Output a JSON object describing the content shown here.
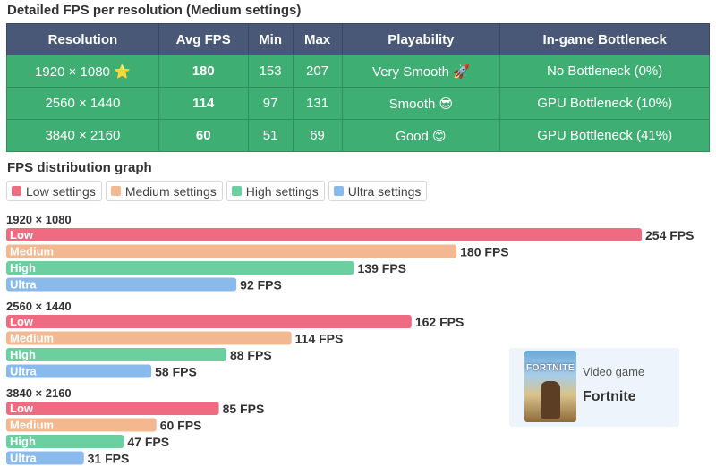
{
  "table_title": "Detailed FPS per resolution (Medium settings)",
  "table": {
    "headers": [
      "Resolution",
      "Avg FPS",
      "Min",
      "Max",
      "Playability",
      "In-game Bottleneck"
    ],
    "rows": [
      {
        "resolution": "1920 × 1080 ⭐",
        "avg": "180",
        "min": "153",
        "max": "207",
        "playability": "Very Smooth 🚀",
        "bottleneck": "No Bottleneck (0%)"
      },
      {
        "resolution": "2560 × 1440",
        "avg": "114",
        "min": "97",
        "max": "131",
        "playability": "Smooth 😎",
        "bottleneck": "GPU Bottleneck (10%)"
      },
      {
        "resolution": "3840 × 2160",
        "avg": "60",
        "min": "51",
        "max": "69",
        "playability": "Good 😊",
        "bottleneck": "GPU Bottleneck (41%)"
      }
    ]
  },
  "graph_title": "FPS distribution graph",
  "chart_data": {
    "type": "bar",
    "orientation": "horizontal",
    "legend": [
      "Low settings",
      "Medium settings",
      "High settings",
      "Ultra settings"
    ],
    "colors": {
      "Low": "#ef6b82",
      "Medium": "#f4b891",
      "High": "#6ccf9f",
      "Ultra": "#8ab9ec"
    },
    "groups": [
      {
        "label": "1920 × 1080",
        "bars": [
          {
            "name": "Low",
            "value": 254,
            "label": "254 FPS"
          },
          {
            "name": "Medium",
            "value": 180,
            "label": "180 FPS"
          },
          {
            "name": "High",
            "value": 139,
            "label": "139 FPS"
          },
          {
            "name": "Ultra",
            "value": 92,
            "label": "92 FPS"
          }
        ]
      },
      {
        "label": "2560 × 1440",
        "bars": [
          {
            "name": "Low",
            "value": 162,
            "label": "162 FPS"
          },
          {
            "name": "Medium",
            "value": 114,
            "label": "114 FPS"
          },
          {
            "name": "High",
            "value": 88,
            "label": "88 FPS"
          },
          {
            "name": "Ultra",
            "value": 58,
            "label": "58 FPS"
          }
        ]
      },
      {
        "label": "3840 × 2160",
        "bars": [
          {
            "name": "Low",
            "value": 85,
            "label": "85 FPS"
          },
          {
            "name": "Medium",
            "value": 60,
            "label": "60 FPS"
          },
          {
            "name": "High",
            "value": 47,
            "label": "47 FPS"
          },
          {
            "name": "Ultra",
            "value": 31,
            "label": "31 FPS"
          }
        ]
      }
    ]
  },
  "game_card": {
    "label": "Video game",
    "name": "Fortnite",
    "poster_text": "FORTNITE"
  }
}
